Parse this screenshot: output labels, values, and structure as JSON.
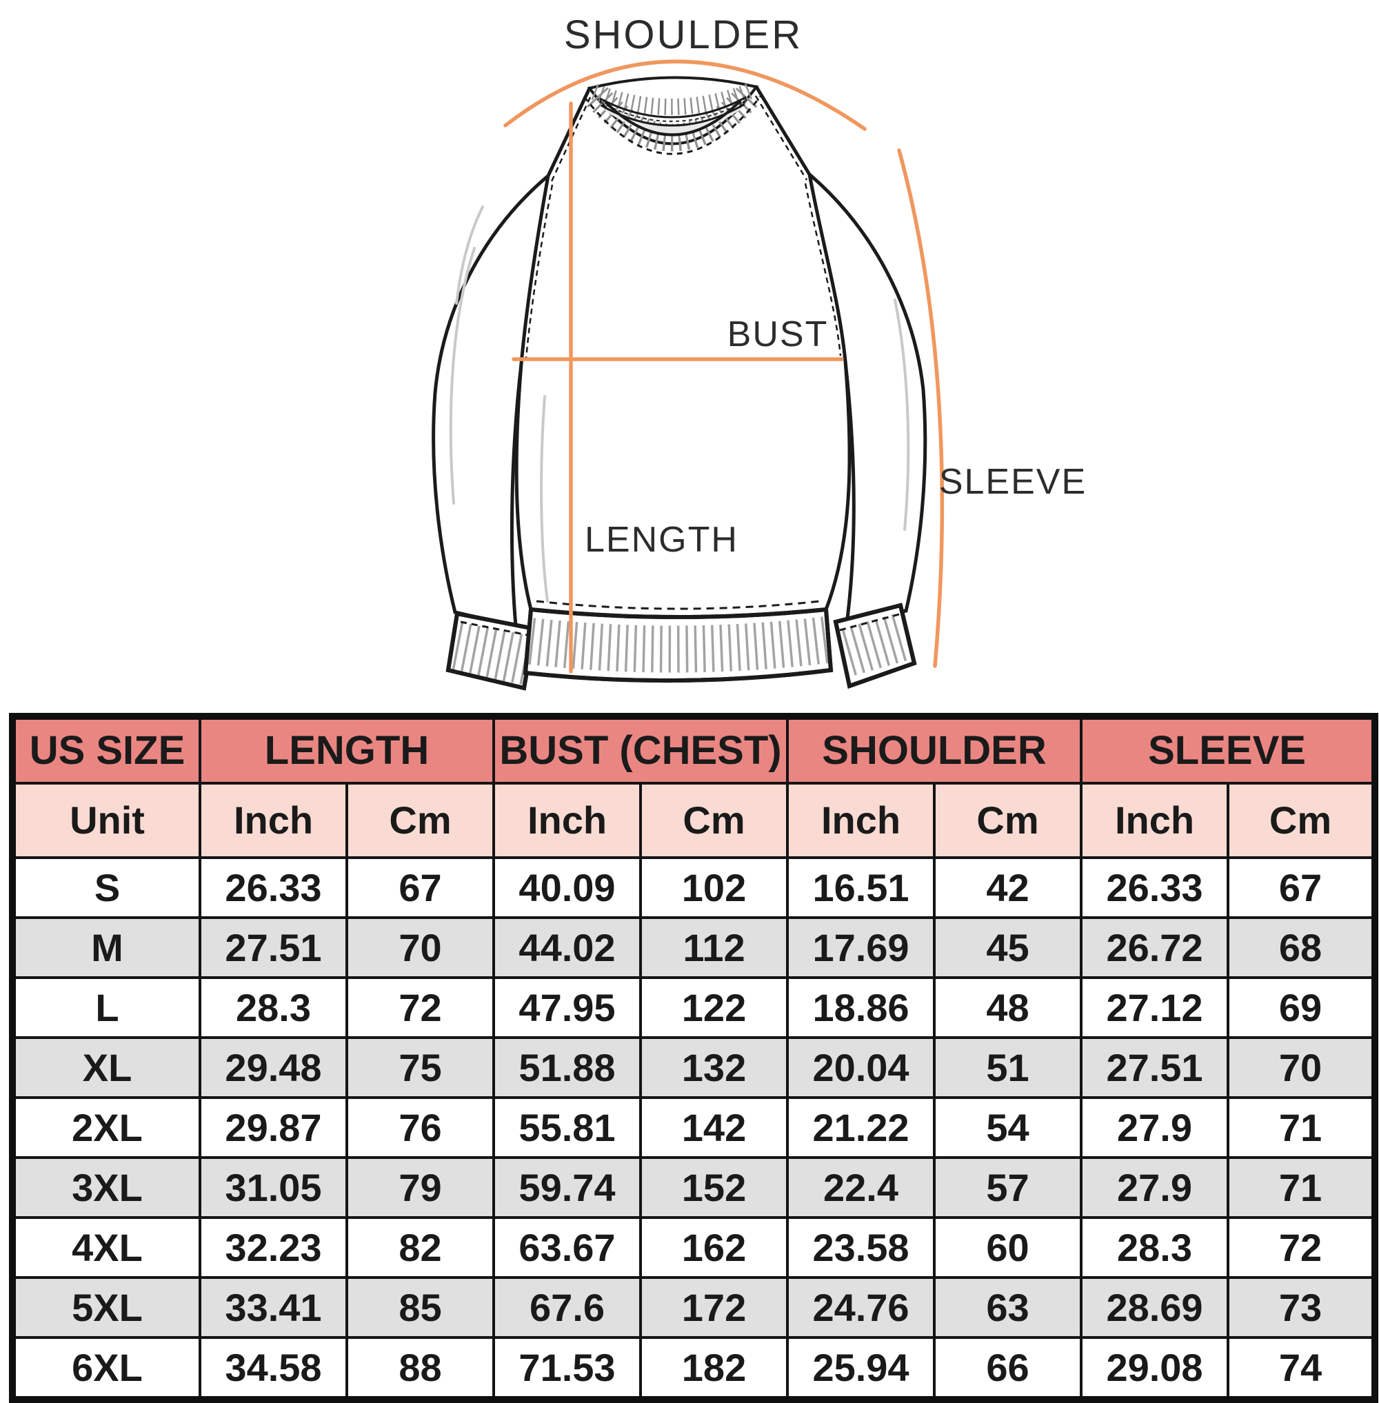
{
  "page": {
    "background": "#ffffff"
  },
  "diagram": {
    "labels": {
      "shoulder": "SHOULDER",
      "bust": "BUST",
      "length": "LENGTH",
      "sleeve": "SLEEVE"
    },
    "accent_color": "#f0975e",
    "outline_color": "#1b1b1b"
  },
  "size_chart": {
    "header_bg": "#ea8682",
    "subheader_bg": "#fadbd3",
    "alt_row_bg": "#e0e0e0",
    "group_headers": [
      "US SIZE",
      "LENGTH",
      "BUST (CHEST)",
      "SHOULDER",
      "SLEEVE"
    ],
    "unit_row": [
      "Unit",
      "Inch",
      "Cm",
      "Inch",
      "Cm",
      "Inch",
      "Cm",
      "Inch",
      "Cm"
    ],
    "rows": [
      [
        "S",
        "26.33",
        "67",
        "40.09",
        "102",
        "16.51",
        "42",
        "26.33",
        "67"
      ],
      [
        "M",
        "27.51",
        "70",
        "44.02",
        "112",
        "17.69",
        "45",
        "26.72",
        "68"
      ],
      [
        "L",
        "28.3",
        "72",
        "47.95",
        "122",
        "18.86",
        "48",
        "27.12",
        "69"
      ],
      [
        "XL",
        "29.48",
        "75",
        "51.88",
        "132",
        "20.04",
        "51",
        "27.51",
        "70"
      ],
      [
        "2XL",
        "29.87",
        "76",
        "55.81",
        "142",
        "21.22",
        "54",
        "27.9",
        "71"
      ],
      [
        "3XL",
        "31.05",
        "79",
        "59.74",
        "152",
        "22.4",
        "57",
        "27.9",
        "71"
      ],
      [
        "4XL",
        "32.23",
        "82",
        "63.67",
        "162",
        "23.58",
        "60",
        "28.3",
        "72"
      ],
      [
        "5XL",
        "33.41",
        "85",
        "67.6",
        "172",
        "24.76",
        "63",
        "28.69",
        "73"
      ],
      [
        "6XL",
        "34.58",
        "88",
        "71.53",
        "182",
        "25.94",
        "66",
        "29.08",
        "74"
      ]
    ]
  },
  "chart_data": {
    "type": "table",
    "title": "Sweatshirt size chart (US sizes)",
    "columns": [
      "US SIZE",
      "LENGTH Inch",
      "LENGTH Cm",
      "BUST (CHEST) Inch",
      "BUST (CHEST) Cm",
      "SHOULDER Inch",
      "SHOULDER Cm",
      "SLEEVE Inch",
      "SLEEVE Cm"
    ],
    "rows": [
      [
        "S",
        26.33,
        67,
        40.09,
        102,
        16.51,
        42,
        26.33,
        67
      ],
      [
        "M",
        27.51,
        70,
        44.02,
        112,
        17.69,
        45,
        26.72,
        68
      ],
      [
        "L",
        28.3,
        72,
        47.95,
        122,
        18.86,
        48,
        27.12,
        69
      ],
      [
        "XL",
        29.48,
        75,
        51.88,
        132,
        20.04,
        51,
        27.51,
        70
      ],
      [
        "2XL",
        29.87,
        76,
        55.81,
        142,
        21.22,
        54,
        27.9,
        71
      ],
      [
        "3XL",
        31.05,
        79,
        59.74,
        152,
        22.4,
        57,
        27.9,
        71
      ],
      [
        "4XL",
        32.23,
        82,
        63.67,
        162,
        23.58,
        60,
        28.3,
        72
      ],
      [
        "5XL",
        33.41,
        85,
        67.6,
        172,
        24.76,
        63,
        28.69,
        73
      ],
      [
        "6XL",
        34.58,
        88,
        71.53,
        182,
        25.94,
        66,
        29.08,
        74
      ]
    ]
  }
}
